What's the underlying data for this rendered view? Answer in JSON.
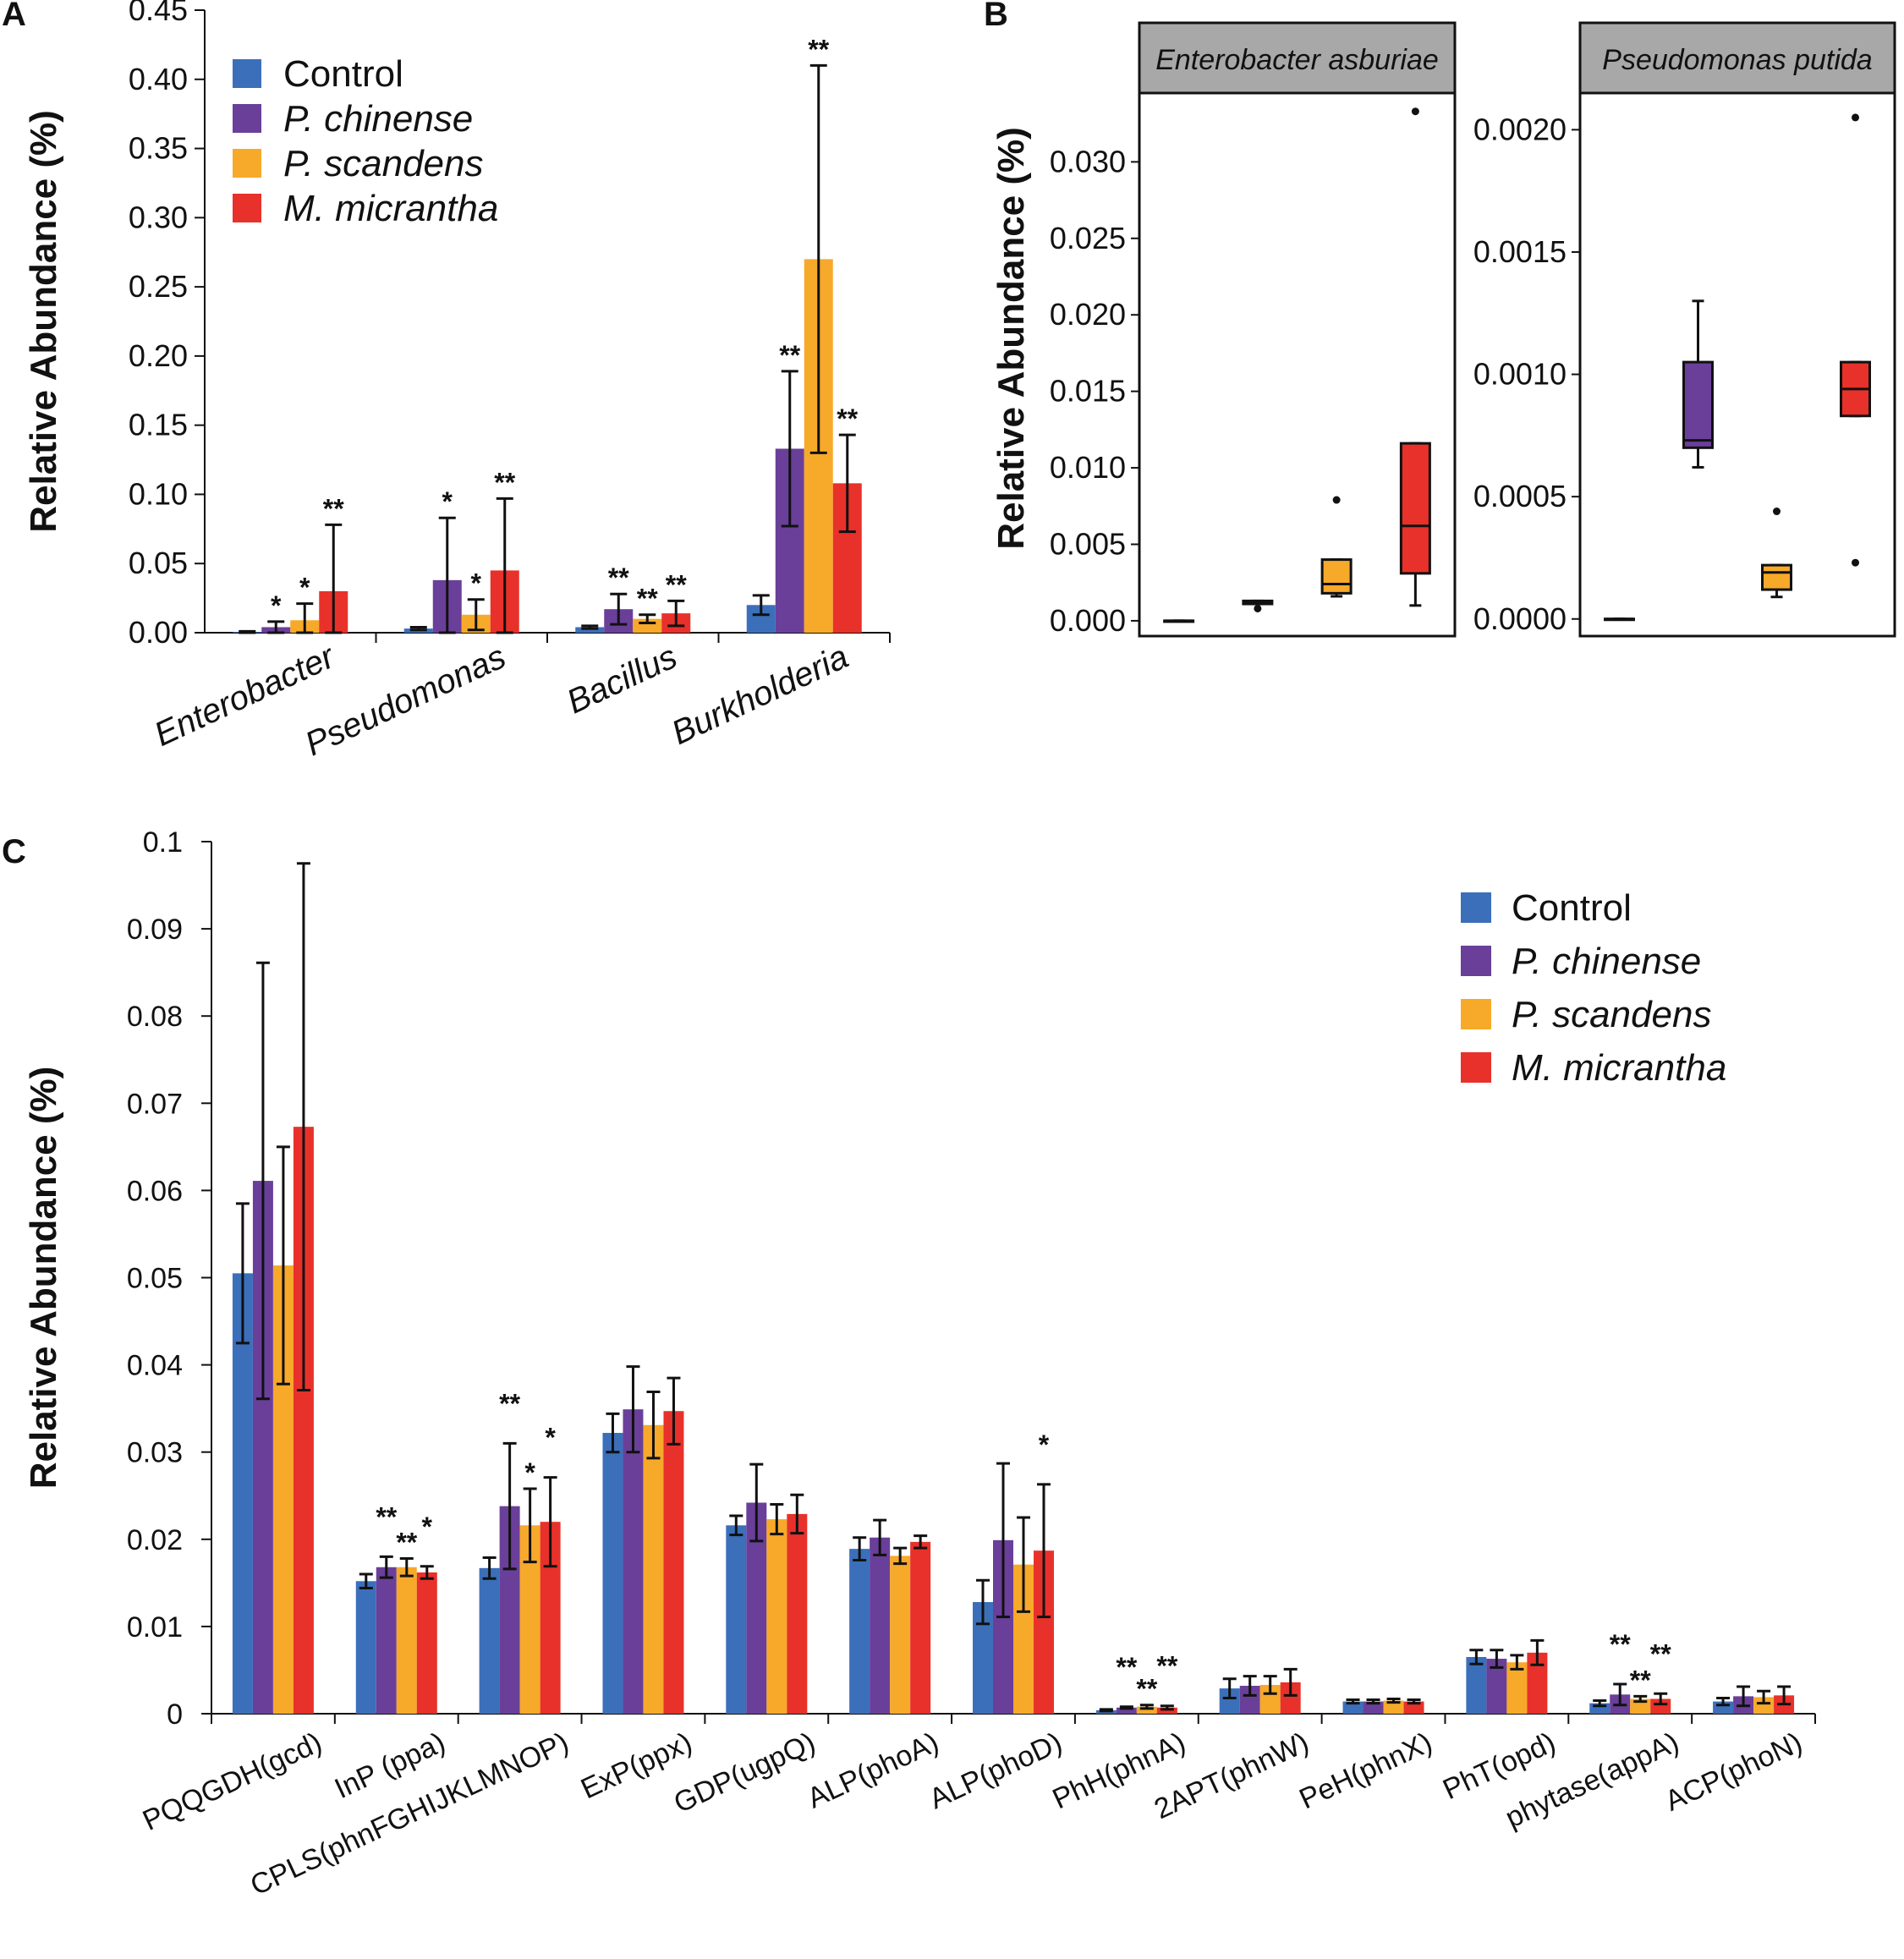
{
  "panels": {
    "a": "A",
    "b": "B",
    "c": "C"
  },
  "colors": {
    "Control": "#3b6fba",
    "P. chinense": "#6a3f99",
    "P. scandens": "#f7a92a",
    "M. micrantha": "#e8312a"
  },
  "legend": {
    "panel_a": [
      "Control",
      "P. chinense",
      "P. scandens",
      "M. micrantha"
    ],
    "panel_c": [
      "Control",
      "P. chinense",
      "P. scandens",
      "M. micrantha"
    ]
  },
  "chart_data": [
    {
      "panel": "A",
      "type": "bar",
      "ylabel": "Relative Abundance (%)",
      "ylim": [
        0,
        0.45
      ],
      "yticks": [
        "0.00",
        "0.05",
        "0.10",
        "0.15",
        "0.20",
        "0.25",
        "0.30",
        "0.35",
        "0.40",
        "0.45"
      ],
      "categories": [
        "Enterobacter",
        "Pseudomonas",
        "Bacillus",
        "Burkholderia"
      ],
      "series": [
        {
          "name": "Control",
          "values": [
            0.0005,
            0.003,
            0.004,
            0.02
          ],
          "errors": [
            0.0005,
            0.001,
            0.001,
            0.007
          ],
          "sig": [
            "",
            "",
            "",
            ""
          ]
        },
        {
          "name": "P. chinense",
          "values": [
            0.004,
            0.038,
            0.017,
            0.133
          ],
          "errors": [
            0.004,
            0.045,
            0.011,
            0.056
          ],
          "sig": [
            "*",
            "*",
            "**",
            "**"
          ]
        },
        {
          "name": "P. scandens",
          "values": [
            0.009,
            0.013,
            0.01,
            0.27
          ],
          "errors": [
            0.012,
            0.011,
            0.003,
            0.14
          ],
          "sig": [
            "*",
            "*",
            "**",
            "**"
          ]
        },
        {
          "name": "M. micrantha",
          "values": [
            0.03,
            0.045,
            0.014,
            0.108
          ],
          "errors": [
            0.048,
            0.052,
            0.009,
            0.035
          ],
          "sig": [
            "**",
            "**",
            "**",
            "**"
          ]
        }
      ]
    },
    {
      "panel": "B",
      "type": "box",
      "ylabel": "Relative Abundance (%)",
      "facets": [
        {
          "title": "Enterobacter asburiae",
          "ylim": [
            -0.001,
            0.0345
          ],
          "yticks": [
            "0.000",
            "0.005",
            "0.010",
            "0.015",
            "0.020",
            "0.025",
            "0.030"
          ],
          "groups": [
            {
              "name": "Control",
              "q1": 0.0,
              "median": 0.0,
              "q3": 0.0,
              "whisker_low": 0.0,
              "whisker_high": 0.0,
              "outliers": []
            },
            {
              "name": "P. chinense",
              "q1": 0.0011,
              "median": 0.0012,
              "q3": 0.0013,
              "whisker_low": 0.0011,
              "whisker_high": 0.0013,
              "outliers": [
                0.0008
              ]
            },
            {
              "name": "P. scandens",
              "q1": 0.0018,
              "median": 0.0024,
              "q3": 0.004,
              "whisker_low": 0.0016,
              "whisker_high": 0.004,
              "outliers": [
                0.0079
              ]
            },
            {
              "name": "M. micrantha",
              "q1": 0.0031,
              "median": 0.0062,
              "q3": 0.0116,
              "whisker_low": 0.001,
              "whisker_high": 0.0116,
              "outliers": [
                0.0333
              ]
            }
          ]
        },
        {
          "title": "Pseudomonas putida",
          "ylim": [
            -7e-05,
            0.00215
          ],
          "yticks": [
            "0.0000",
            "0.0005",
            "0.0010",
            "0.0015",
            "0.0020"
          ],
          "groups": [
            {
              "name": "Control",
              "q1": 0.0,
              "median": 0.0,
              "q3": 0.0,
              "whisker_low": 0.0,
              "whisker_high": 0.0,
              "outliers": []
            },
            {
              "name": "P. chinense",
              "q1": 0.0007,
              "median": 0.00073,
              "q3": 0.00105,
              "whisker_low": 0.00062,
              "whisker_high": 0.0013,
              "outliers": []
            },
            {
              "name": "P. scandens",
              "q1": 0.00012,
              "median": 0.00019,
              "q3": 0.00022,
              "whisker_low": 9e-05,
              "whisker_high": 0.00022,
              "outliers": [
                0.00044
              ]
            },
            {
              "name": "M. micrantha",
              "q1": 0.00083,
              "median": 0.00094,
              "q3": 0.00105,
              "whisker_low": 0.00083,
              "whisker_high": 0.00105,
              "outliers": [
                0.00205,
                0.00023
              ]
            }
          ]
        }
      ]
    },
    {
      "panel": "C",
      "type": "bar",
      "ylabel": "Relative Abundance (%)",
      "ylim": [
        0,
        0.1
      ],
      "yticks": [
        "0",
        "0.01",
        "0.02",
        "0.03",
        "0.04",
        "0.05",
        "0.06",
        "0.07",
        "0.08",
        "0.09",
        "0.1"
      ],
      "categories": [
        "PQQGDH(gcd)",
        "InP (ppa)",
        "CPLS(phnFGHIJKLMNOP)",
        "ExP(ppx)",
        "GDP(ugpQ)",
        "ALP(phoA)",
        "ALP(phoD)",
        "PhH(phnA)",
        "2APT(phnW)",
        "PeH(phnX)",
        "PhT(opd)",
        "phytase(appA)",
        "ACP(phoN)"
      ],
      "series": [
        {
          "name": "Control",
          "values": [
            0.0505,
            0.0152,
            0.0167,
            0.0322,
            0.0216,
            0.0189,
            0.0128,
            0.0004,
            0.0029,
            0.0014,
            0.0065,
            0.0012,
            0.0014
          ],
          "errors": [
            0.008,
            0.0008,
            0.0012,
            0.0022,
            0.0011,
            0.0013,
            0.0025,
            0.0001,
            0.0011,
            0.0002,
            0.0008,
            0.0003,
            0.0004
          ],
          "sig": [
            "",
            "",
            "",
            "",
            "",
            "",
            "",
            "",
            "",
            "",
            "",
            "",
            ""
          ]
        },
        {
          "name": "P. chinense",
          "values": [
            0.0611,
            0.0168,
            0.0238,
            0.0349,
            0.0242,
            0.0202,
            0.0199,
            0.0007,
            0.0032,
            0.0014,
            0.0063,
            0.0022,
            0.002
          ],
          "errors": [
            0.025,
            0.0012,
            0.0072,
            0.0049,
            0.0044,
            0.002,
            0.0088,
            0.0001,
            0.0011,
            0.0002,
            0.001,
            0.0012,
            0.0011
          ],
          "sig": [
            "",
            "**",
            "**",
            "",
            "",
            "",
            "",
            "**",
            "",
            "",
            "",
            "**",
            ""
          ]
        },
        {
          "name": "P. scandens",
          "values": [
            0.0514,
            0.0168,
            0.0216,
            0.0331,
            0.0223,
            0.0181,
            0.0171,
            0.0008,
            0.0033,
            0.0015,
            0.0059,
            0.0017,
            0.0019
          ],
          "errors": [
            0.0136,
            0.001,
            0.0042,
            0.0038,
            0.0017,
            0.0009,
            0.0054,
            0.0002,
            0.001,
            0.0002,
            0.0008,
            0.0003,
            0.0007
          ],
          "sig": [
            "",
            "**",
            "*",
            "",
            "",
            "",
            "",
            "**",
            "",
            "",
            "",
            "**",
            ""
          ]
        },
        {
          "name": "M. micrantha",
          "values": [
            0.0673,
            0.0162,
            0.022,
            0.0347,
            0.0229,
            0.0197,
            0.0187,
            0.0007,
            0.0036,
            0.0014,
            0.007,
            0.0017,
            0.0021
          ],
          "errors": [
            0.0302,
            0.0007,
            0.0051,
            0.0038,
            0.0022,
            0.0007,
            0.0076,
            0.0002,
            0.0015,
            0.0002,
            0.0014,
            0.0006,
            0.001
          ],
          "sig": [
            "",
            "*",
            "*",
            "",
            "",
            "",
            "*",
            "**",
            "",
            "",
            "",
            "**",
            ""
          ]
        }
      ]
    }
  ]
}
